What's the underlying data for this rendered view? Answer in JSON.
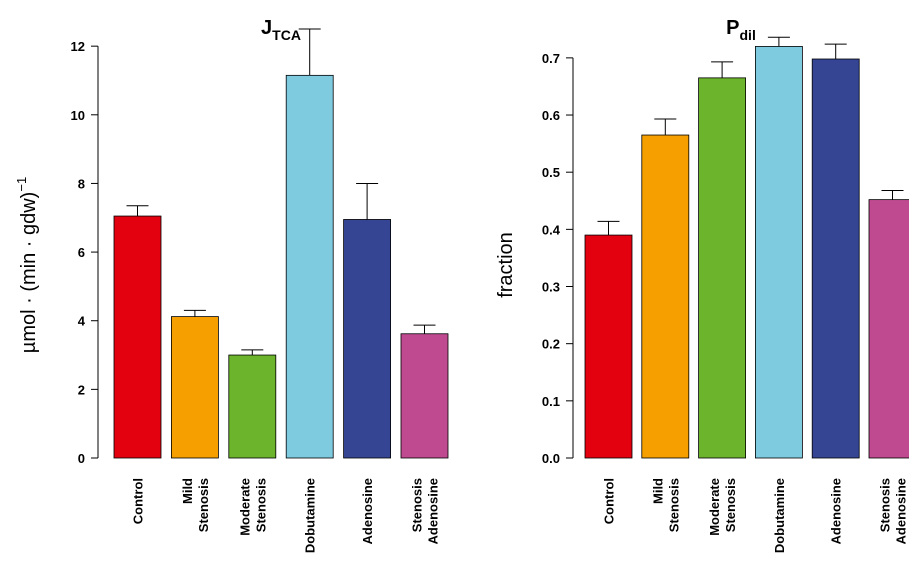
{
  "chart_data": [
    {
      "type": "bar",
      "title": "J",
      "title_subscript": "TCA",
      "ylabel": "µmol · (min · gdw)",
      "ylabel_superscript": "−1",
      "ylim": [
        0,
        12.5
      ],
      "yticks": [
        "0",
        "2",
        "4",
        "6",
        "8",
        "10",
        "12"
      ],
      "categories": [
        [
          "Control"
        ],
        [
          "Mild",
          "Stenosis"
        ],
        [
          "Moderate",
          "Stenosis"
        ],
        [
          "Dobutamine"
        ],
        [
          "Adenosine"
        ],
        [
          "Stenosis",
          "Adenosine"
        ]
      ],
      "values": [
        7.05,
        4.12,
        3.0,
        11.15,
        6.95,
        3.62
      ],
      "errors": [
        0.3,
        0.18,
        0.15,
        1.35,
        1.05,
        0.25
      ],
      "colors": [
        "#e3000f",
        "#f5a000",
        "#6cb42c",
        "#7ecbe0",
        "#354593",
        "#bf4a90"
      ]
    },
    {
      "type": "bar",
      "title": "P",
      "title_subscript": "dil",
      "ylabel": "fraction",
      "ylim": [
        0,
        0.74
      ],
      "yticks": [
        "0.0",
        "0.1",
        "0.2",
        "0.3",
        "0.4",
        "0.5",
        "0.6",
        "0.7"
      ],
      "categories": [
        [
          "Control"
        ],
        [
          "Mild",
          "Stenosis"
        ],
        [
          "Moderate",
          "Stenosis"
        ],
        [
          "Dobutamine"
        ],
        [
          "Adenosine"
        ],
        [
          "Stenosis",
          "Adenosine"
        ]
      ],
      "values": [
        0.39,
        0.565,
        0.665,
        0.72,
        0.698,
        0.452
      ],
      "errors": [
        0.024,
        0.028,
        0.028,
        0.016,
        0.026,
        0.016
      ],
      "colors": [
        "#e3000f",
        "#f5a000",
        "#6cb42c",
        "#7ecbe0",
        "#354593",
        "#bf4a90"
      ]
    }
  ]
}
